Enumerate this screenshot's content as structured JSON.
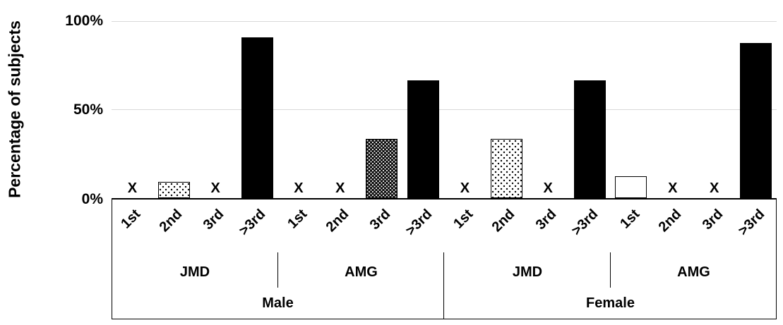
{
  "chart_data": {
    "type": "bar",
    "title": "",
    "ylabel": "Percentage of subjects",
    "ylim": [
      0,
      100
    ],
    "yticks": [
      "0%",
      "50%",
      "100%"
    ],
    "gridlines_at": [
      50,
      100
    ],
    "legend": "none",
    "categories": [
      "1st",
      "2nd",
      "3rd",
      ">3rd"
    ],
    "zero_marker": "X",
    "bar_color": "#000000",
    "gridline_color": "#d9d9d9",
    "series_patterns": {
      "1st": "white",
      "2nd": "light-dots",
      "3rd": "dense-dots",
      ">3rd": "solid-black"
    },
    "groups": [
      {
        "sex": "Male",
        "dept": "JMD",
        "values": [
          null,
          9.1,
          null,
          90.9
        ]
      },
      {
        "sex": "Male",
        "dept": "AMG",
        "values": [
          null,
          null,
          33.3,
          66.7
        ]
      },
      {
        "sex": "Female",
        "dept": "JMD",
        "values": [
          null,
          33.3,
          null,
          66.7
        ]
      },
      {
        "sex": "Female",
        "dept": "AMG",
        "values": [
          12.5,
          null,
          null,
          87.5
        ]
      }
    ]
  }
}
